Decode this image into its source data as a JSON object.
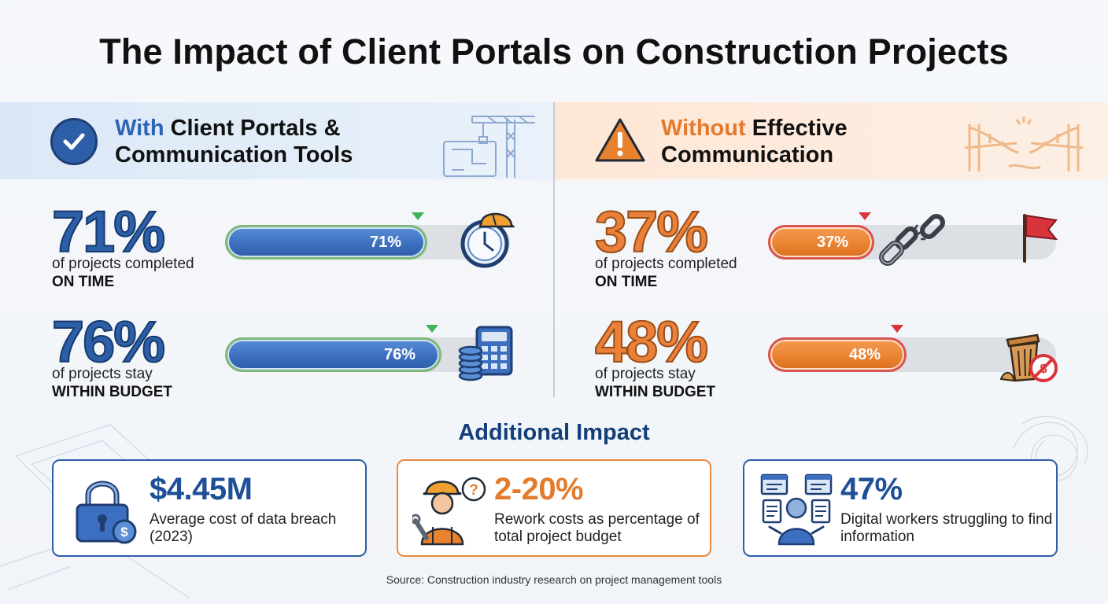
{
  "title": "The Impact of Client Portals on Construction Projects",
  "left_panel": {
    "heading_accent": "With",
    "heading_rest_line1": " Client Portals &",
    "heading_line2": "Communication Tools"
  },
  "right_panel": {
    "heading_accent": "Without",
    "heading_rest_line1": " Effective",
    "heading_line2": "Communication"
  },
  "stats": {
    "with_on_time": {
      "value": "71%",
      "desc": "of projects completed",
      "emph": "ON TIME"
    },
    "with_budget": {
      "value": "76%",
      "desc": "of projects stay",
      "emph": "WITHIN BUDGET"
    },
    "without_on_time": {
      "value": "37%",
      "desc": "of projects completed",
      "emph": "ON TIME"
    },
    "without_budget": {
      "value": "48%",
      "desc": "of projects stay",
      "emph": "WITHIN BUDGET"
    }
  },
  "chart_data": {
    "type": "bar",
    "categories": [
      "ON TIME",
      "WITHIN BUDGET"
    ],
    "series": [
      {
        "name": "With Client Portals & Communication Tools",
        "values": [
          71,
          76
        ],
        "labels": [
          "71%",
          "76%"
        ],
        "color": "#3c6fbf"
      },
      {
        "name": "Without Effective Communication",
        "values": [
          37,
          48
        ],
        "labels": [
          "37%",
          "48%"
        ],
        "color": "#e9822f"
      }
    ],
    "ylim": [
      0,
      100
    ]
  },
  "additional": {
    "title": "Additional Impact",
    "cards": [
      {
        "value": "$4.45M",
        "text": "Average cost of data breach (2023)",
        "icon": "padlock-dollar-icon"
      },
      {
        "value": "2-20%",
        "text": "Rework costs as percentage of total project budget",
        "icon": "worker-question-icon"
      },
      {
        "value": "47%",
        "text": "Digital workers struggling to find information",
        "icon": "worker-documents-icon"
      }
    ]
  },
  "source": "Source: Construction industry research on project management tools",
  "colors": {
    "blue": "#2d5ea8",
    "orange": "#e9822f",
    "navy": "#123f7a",
    "marker_green": "#3fb35a",
    "marker_red": "#d9343b"
  }
}
